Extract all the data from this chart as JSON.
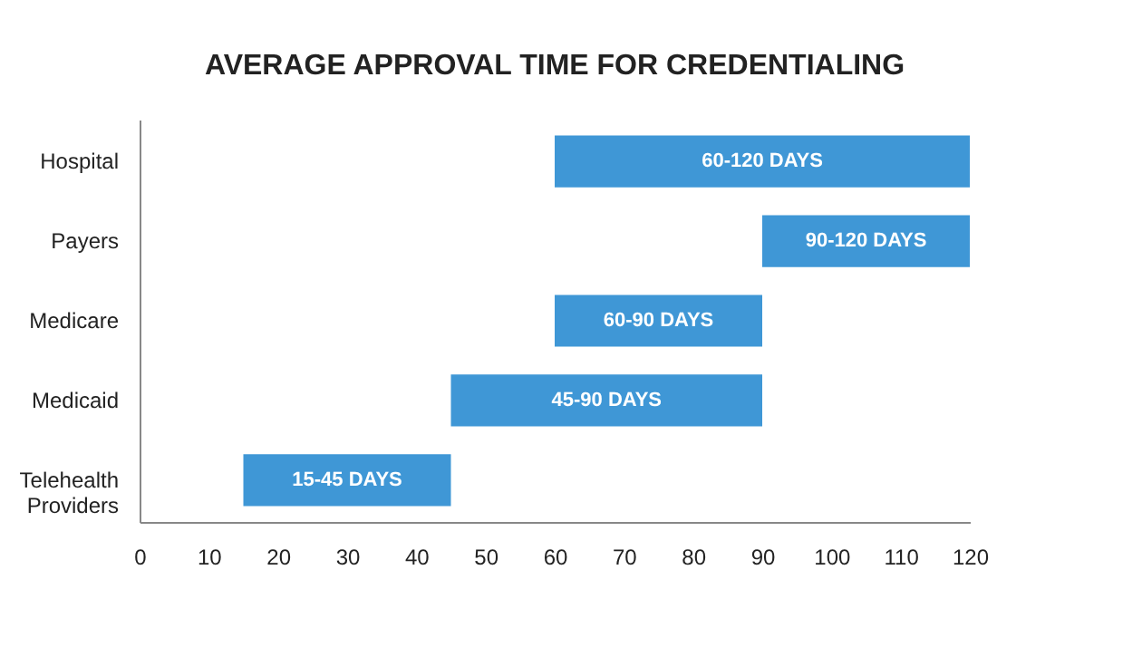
{
  "chart_data": {
    "type": "bar",
    "orientation": "horizontal",
    "title": "AVERAGE APPROVAL TIME FOR CREDENTIALING",
    "categories": [
      "Hospital",
      "Payers",
      "Medicare",
      "Medicaid",
      "Telehealth Providers"
    ],
    "base": [
      60,
      90,
      60,
      45,
      15
    ],
    "values": [
      60,
      30,
      30,
      45,
      30
    ],
    "value_labels": [
      "60-120 DAYS",
      "90-120 DAYS",
      "60-90 DAYS",
      "45-90 DAYS",
      "15-45 DAYS"
    ],
    "color": "#3f97d6",
    "xlim": [
      0,
      120
    ],
    "xticks": [
      0,
      10,
      20,
      30,
      40,
      50,
      60,
      70,
      80,
      90,
      100,
      110,
      120
    ],
    "grid": false
  }
}
